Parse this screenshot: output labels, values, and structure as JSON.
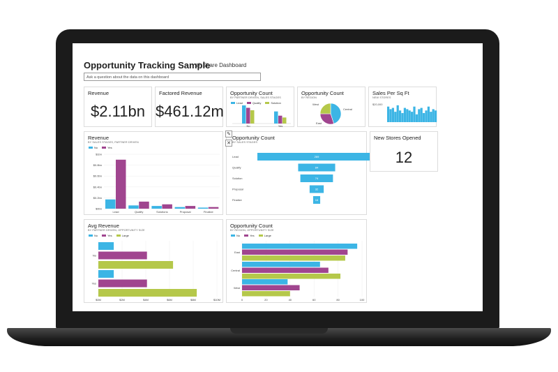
{
  "dashboard": {
    "title": "Opportunity Tracking Sample",
    "share_label": "Share Dashboard",
    "qa_placeholder": "Ask a question about the data on this dashboard"
  },
  "colors": {
    "blue": "#3cb5e5",
    "purple": "#a0458f",
    "green": "#b5c84a"
  },
  "tiles": {
    "revenue": {
      "title": "Revenue",
      "value": "$2.11bn"
    },
    "factored": {
      "title": "Factored Revenue",
      "value": "$461.12m"
    },
    "opp_count_stages": {
      "title": "Opportunity Count",
      "subtitle": "BY PARTNER DRIVEN, SALES STAGES",
      "legend": [
        "Lead",
        "Quality",
        "Solution"
      ],
      "categories": [
        "No",
        "Yes"
      ]
    },
    "opp_count_region": {
      "title": "Opportunity Count",
      "subtitle": "BY REGION",
      "labels": [
        "West",
        "Central",
        "East"
      ]
    },
    "sales_sqft": {
      "title": "Sales Per Sq Ft",
      "subtitle": "NEW STORES",
      "ymax_label": "$20,000"
    },
    "new_stores": {
      "title": "New Stores Opened",
      "value": "12"
    },
    "revenue_stages": {
      "title": "Revenue",
      "subtitle": "BY SALES STAGES, PARTNER DRIVEN",
      "legend": [
        "No",
        "Yes"
      ]
    },
    "funnel": {
      "title": "Opportunity Count",
      "subtitle": "BY SALES STAGES"
    },
    "avg_revenue": {
      "title": "Avg Revenue",
      "subtitle": "BY PARTNER DRIVEN, OPPORTUNITY SIZE",
      "legend": [
        "No",
        "Yes",
        "Large"
      ]
    },
    "opp_count_size": {
      "title": "Opportunity Count",
      "subtitle": "BY REGION, OPPORTUNITY SIZE",
      "legend": [
        "No",
        "Yes",
        "Large"
      ]
    }
  },
  "chart_data": [
    {
      "id": "opp_count_stages",
      "type": "bar",
      "categories": [
        "No",
        "Yes"
      ],
      "series": [
        {
          "name": "Lead",
          "values": [
            60,
            40
          ]
        },
        {
          "name": "Quality",
          "values": [
            52,
            26
          ]
        },
        {
          "name": "Solution",
          "values": [
            44,
            20
          ]
        }
      ]
    },
    {
      "id": "opp_count_region",
      "type": "pie",
      "categories": [
        "Central",
        "East",
        "West"
      ],
      "values": [
        45,
        30,
        25
      ]
    },
    {
      "id": "sales_sqft",
      "type": "bar",
      "values": [
        12,
        10,
        11,
        8,
        13,
        9,
        7,
        11,
        10,
        9,
        8,
        12,
        6,
        10,
        11,
        7,
        9,
        12,
        8,
        10,
        9
      ]
    },
    {
      "id": "revenue_stages",
      "type": "bar",
      "categories": [
        "Lead",
        "Qualify",
        "Solutions",
        "Proposal",
        "Finalize"
      ],
      "y_ticks": [
        "$0bn",
        "$0.2bn",
        "$0.4bn",
        "$0.6bn",
        "$0.8bn",
        "$1bn"
      ],
      "ylim": [
        0,
        1
      ],
      "series": [
        {
          "name": "No",
          "values": [
            0.17,
            0.06,
            0.05,
            0.03,
            0.02
          ]
        },
        {
          "name": "Yes",
          "values": [
            0.9,
            0.13,
            0.08,
            0.05,
            0.03
          ]
        }
      ]
    },
    {
      "id": "funnel",
      "type": "bar",
      "categories": [
        "Lead",
        "Qualify",
        "Solution",
        "Proposal",
        "Finalize"
      ],
      "values": [
        269,
        84,
        74,
        32,
        16
      ]
    },
    {
      "id": "avg_revenue",
      "type": "bar",
      "categories": [
        "No",
        "Yes"
      ],
      "x_ticks": [
        "$0M",
        "$2M",
        "$4M",
        "$6M",
        "$8M",
        "$10M"
      ],
      "xlim": [
        0,
        10
      ],
      "series": [
        {
          "name": "No",
          "values": [
            1.3,
            1.3
          ]
        },
        {
          "name": "Yes",
          "values": [
            4.1,
            4.1
          ]
        },
        {
          "name": "Large",
          "values": [
            6.3,
            8.3
          ]
        }
      ]
    },
    {
      "id": "opp_count_size",
      "type": "bar",
      "categories": [
        "East",
        "Central",
        "West"
      ],
      "x_ticks": [
        "0",
        "20",
        "40",
        "60",
        "80",
        "100"
      ],
      "xlim": [
        0,
        100
      ],
      "series": [
        {
          "name": "No",
          "values": [
            96,
            65,
            38
          ]
        },
        {
          "name": "Yes",
          "values": [
            88,
            72,
            48
          ]
        },
        {
          "name": "Large",
          "values": [
            86,
            82,
            40
          ]
        }
      ]
    }
  ]
}
